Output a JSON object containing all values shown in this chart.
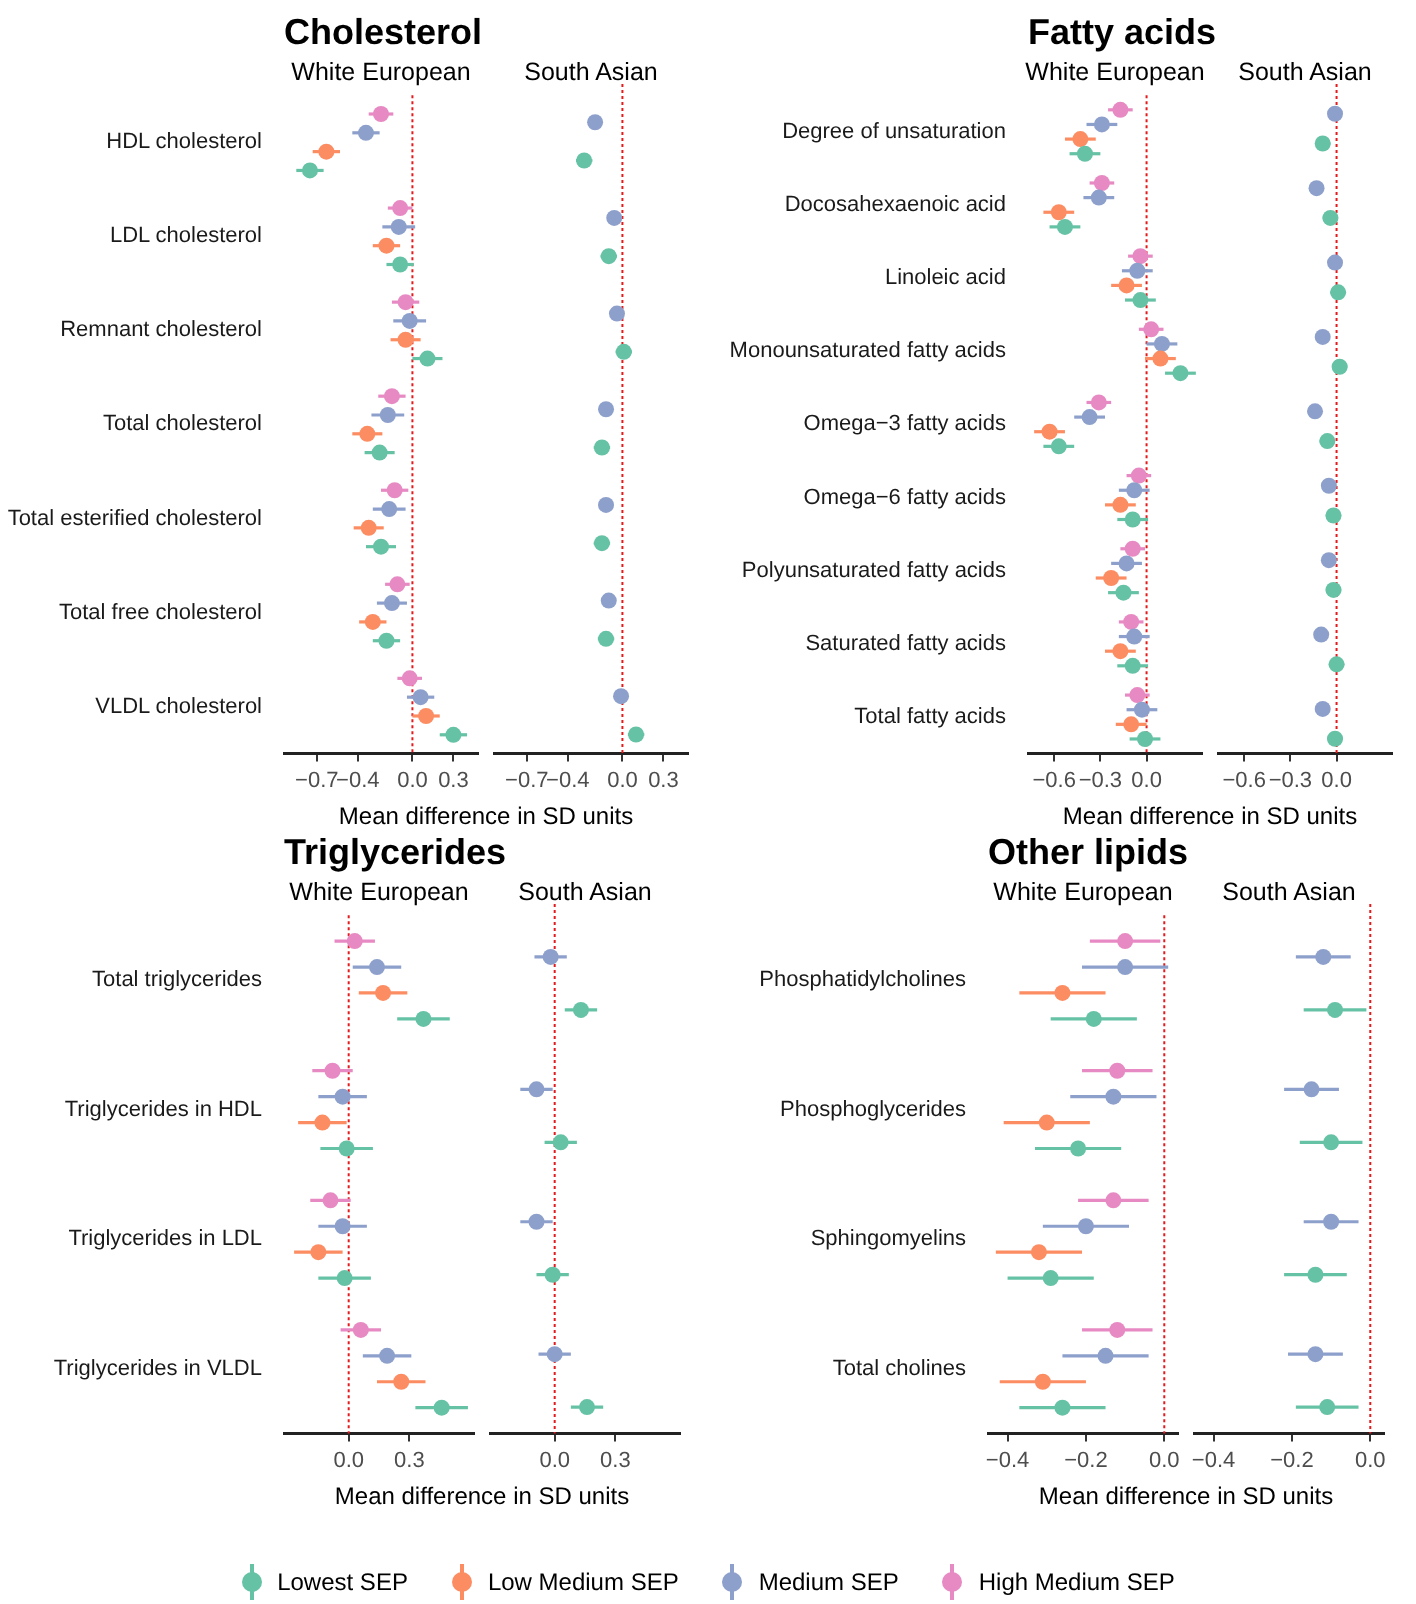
{
  "chart_data": [
    {
      "type": "scatter",
      "orientation": "horizontal",
      "title": "Cholesterol",
      "subtitle": "White European",
      "xlabel": "Mean difference in SD units",
      "marker": "circle",
      "legend": "bottom",
      "categories": [
        "HDL cholesterol",
        "LDL cholesterol",
        "Remnant cholesterol",
        "Total cholesterol",
        "Total esterified cholesterol",
        "Total free cholesterol",
        "VLDL cholesterol"
      ],
      "xlim": [
        -0.94,
        0.48
      ],
      "xticks": [
        {
          "value": -0.7,
          "label": "−0.7"
        },
        {
          "value": -0.4,
          "label": "−0.4"
        },
        {
          "value": 0,
          "label": "0.0"
        },
        {
          "value": 0.3,
          "label": "0.3"
        }
      ],
      "ref_lines": [
        {
          "axis": "x",
          "value": 0,
          "color": "#e41a1c",
          "line_style": "dotted"
        }
      ],
      "series": [
        {
          "name": "Lowest SEP",
          "color": "#66c2a5",
          "values": [
            -0.75,
            -0.09,
            0.11,
            -0.24,
            -0.23,
            -0.19,
            0.3
          ],
          "errors": [
            0.1,
            0.1,
            0.11,
            0.11,
            0.11,
            0.1,
            0.1
          ]
        },
        {
          "name": "Low Medium SEP",
          "color": "#fc8d62",
          "values": [
            -0.63,
            -0.19,
            -0.05,
            -0.33,
            -0.32,
            -0.29,
            0.1
          ],
          "errors": [
            0.1,
            0.1,
            0.11,
            0.11,
            0.11,
            0.1,
            0.1
          ]
        },
        {
          "name": "Medium SEP",
          "color": "#8da0cb",
          "values": [
            -0.34,
            -0.1,
            -0.02,
            -0.18,
            -0.17,
            -0.15,
            0.06
          ],
          "errors": [
            0.1,
            0.12,
            0.12,
            0.12,
            0.12,
            0.11,
            0.1
          ]
        },
        {
          "name": "High Medium SEP",
          "color": "#e78ac3",
          "values": [
            -0.23,
            -0.09,
            -0.05,
            -0.15,
            -0.13,
            -0.11,
            -0.02
          ],
          "errors": [
            0.09,
            0.09,
            0.1,
            0.1,
            0.1,
            0.09,
            0.09
          ]
        }
      ]
    },
    {
      "type": "scatter",
      "orientation": "horizontal",
      "subtitle": "South Asian",
      "marker": "circle",
      "tick_labels": "x",
      "categories": [
        null,
        null,
        null,
        null,
        null,
        null,
        null
      ],
      "xlim": [
        -0.94,
        0.48
      ],
      "xticks": [
        {
          "value": -0.7,
          "label": "−0.7"
        },
        {
          "value": -0.4,
          "label": "−0.4"
        },
        {
          "value": 0,
          "label": "0.0"
        },
        {
          "value": 0.3,
          "label": "0.3"
        }
      ],
      "ref_lines": [
        {
          "axis": "x",
          "value": 0,
          "color": "#e41a1c",
          "line_style": "dotted"
        }
      ],
      "series": [
        {
          "color": "#66c2a5",
          "values": [
            -0.28,
            -0.1,
            0.01,
            -0.15,
            -0.15,
            -0.12,
            0.1
          ],
          "errors": [
            0.06,
            0.06,
            0.06,
            0.06,
            0.06,
            0.06,
            0.06
          ]
        },
        {
          "color": "#8da0cb",
          "values": [
            -0.2,
            -0.06,
            -0.04,
            -0.12,
            -0.12,
            -0.1,
            -0.01
          ],
          "errors": [
            0.05,
            0.05,
            0.05,
            0.05,
            0.05,
            0.05,
            0.05
          ]
        }
      ]
    },
    {
      "type": "scatter",
      "orientation": "horizontal",
      "title": "Fatty acids",
      "subtitle": "White European",
      "xlabel": "Mean difference in SD units",
      "marker": "circle",
      "categories": [
        "Degree of unsaturation",
        "Docosahexaenoic acid",
        "Linoleic acid",
        "Monounsaturated fatty acids",
        "Omega−3 fatty acids",
        "Omega−6 fatty acids",
        "Polyunsaturated fatty acids",
        "Saturated fatty acids",
        "Total fatty acids"
      ],
      "xlim": [
        -0.77,
        0.36
      ],
      "xticks": [
        {
          "value": -0.6,
          "label": "−0.6"
        },
        {
          "value": -0.3,
          "label": "−0.3"
        },
        {
          "value": 0,
          "label": "0.0"
        }
      ],
      "ref_lines": [
        {
          "axis": "x",
          "value": 0,
          "color": "#e41a1c",
          "line_style": "dotted"
        }
      ],
      "series": [
        {
          "color": "#66c2a5",
          "values": [
            -0.4,
            -0.53,
            -0.04,
            0.22,
            -0.57,
            -0.09,
            -0.15,
            -0.09,
            -0.01
          ],
          "errors": [
            0.1,
            0.1,
            0.1,
            0.1,
            0.1,
            0.1,
            0.1,
            0.1,
            0.1
          ]
        },
        {
          "color": "#fc8d62",
          "values": [
            -0.43,
            -0.57,
            -0.13,
            0.09,
            -0.63,
            -0.17,
            -0.23,
            -0.17,
            -0.1
          ],
          "errors": [
            0.1,
            0.1,
            0.1,
            0.1,
            0.1,
            0.1,
            0.1,
            0.1,
            0.1
          ]
        },
        {
          "color": "#8da0cb",
          "values": [
            -0.29,
            -0.31,
            -0.06,
            0.1,
            -0.37,
            -0.08,
            -0.13,
            -0.08,
            -0.03
          ],
          "errors": [
            0.1,
            0.1,
            0.1,
            0.1,
            0.1,
            0.1,
            0.1,
            0.1,
            0.1
          ]
        },
        {
          "color": "#e78ac3",
          "values": [
            -0.17,
            -0.29,
            -0.04,
            0.03,
            -0.31,
            -0.05,
            -0.09,
            -0.1,
            -0.06
          ],
          "errors": [
            0.08,
            0.08,
            0.08,
            0.08,
            0.08,
            0.08,
            0.08,
            0.08,
            0.08
          ]
        }
      ]
    },
    {
      "type": "scatter",
      "orientation": "horizontal",
      "subtitle": "South Asian",
      "marker": "circle",
      "tick_labels": "x",
      "categories": [
        null,
        null,
        null,
        null,
        null,
        null,
        null,
        null,
        null
      ],
      "xlim": [
        -0.77,
        0.36
      ],
      "xticks": [
        {
          "value": -0.6,
          "label": "−0.6"
        },
        {
          "value": -0.3,
          "label": "−0.3"
        },
        {
          "value": 0,
          "label": "0.0"
        }
      ],
      "ref_lines": [
        {
          "axis": "x",
          "value": 0,
          "color": "#e41a1c",
          "line_style": "dotted"
        }
      ],
      "series": [
        {
          "color": "#66c2a5",
          "values": [
            -0.09,
            -0.04,
            0.01,
            0.02,
            -0.06,
            -0.02,
            -0.02,
            0,
            -0.01
          ],
          "errors": [
            0.05,
            0.05,
            0.05,
            0.05,
            0.05,
            0.05,
            0.05,
            0.05,
            0.05
          ]
        },
        {
          "color": "#8da0cb",
          "values": [
            -0.01,
            -0.13,
            -0.01,
            -0.09,
            -0.14,
            -0.05,
            -0.05,
            -0.1,
            -0.09
          ],
          "errors": [
            0.04,
            0.04,
            0.04,
            0.04,
            0.04,
            0.04,
            0.04,
            0.04,
            0.04
          ]
        }
      ]
    },
    {
      "type": "scatter",
      "orientation": "horizontal",
      "title": "Triglycerides",
      "subtitle": "White European",
      "xlabel": "Mean difference in SD units",
      "marker": "circle",
      "categories": [
        "Total triglycerides",
        "Triglycerides in HDL",
        "Triglycerides in LDL",
        "Triglycerides in VLDL"
      ],
      "xlim": [
        -0.32,
        0.62
      ],
      "xticks": [
        {
          "value": 0,
          "label": "0.0"
        },
        {
          "value": 0.3,
          "label": "0.3"
        }
      ],
      "ref_lines": [
        {
          "axis": "x",
          "value": 0,
          "color": "#e41a1c",
          "line_style": "dotted"
        }
      ],
      "series": [
        {
          "color": "#66c2a5",
          "values": [
            0.37,
            -0.01,
            -0.02,
            0.46
          ],
          "errors": [
            0.13,
            0.13,
            0.13,
            0.13
          ]
        },
        {
          "color": "#fc8d62",
          "values": [
            0.17,
            -0.13,
            -0.15,
            0.26
          ],
          "errors": [
            0.12,
            0.12,
            0.12,
            0.12
          ]
        },
        {
          "color": "#8da0cb",
          "values": [
            0.14,
            -0.03,
            -0.03,
            0.19
          ],
          "errors": [
            0.12,
            0.12,
            0.12,
            0.12
          ]
        },
        {
          "color": "#e78ac3",
          "values": [
            0.03,
            -0.08,
            -0.09,
            0.06
          ],
          "errors": [
            0.1,
            0.1,
            0.1,
            0.1
          ]
        }
      ]
    },
    {
      "type": "scatter",
      "orientation": "horizontal",
      "subtitle": "South Asian",
      "marker": "circle",
      "tick_labels": "x",
      "categories": [
        null,
        null,
        null,
        null
      ],
      "xlim": [
        -0.32,
        0.62
      ],
      "xticks": [
        {
          "value": 0,
          "label": "0.0"
        },
        {
          "value": 0.3,
          "label": "0.3"
        }
      ],
      "ref_lines": [
        {
          "axis": "x",
          "value": 0,
          "color": "#e41a1c",
          "line_style": "dotted"
        }
      ],
      "series": [
        {
          "color": "#66c2a5",
          "values": [
            0.13,
            0.03,
            -0.01,
            0.16
          ],
          "errors": [
            0.08,
            0.08,
            0.08,
            0.08
          ]
        },
        {
          "color": "#8da0cb",
          "values": [
            -0.02,
            -0.09,
            -0.09,
            0
          ],
          "errors": [
            0.08,
            0.08,
            0.08,
            0.08
          ]
        }
      ]
    },
    {
      "type": "scatter",
      "orientation": "horizontal",
      "title": "Other lipids",
      "subtitle": "White European",
      "xlabel": "Mean difference in SD units",
      "marker": "circle",
      "categories": [
        "Phosphatidylcholines",
        "Phosphoglycerides",
        "Sphingomyelins",
        "Total cholines"
      ],
      "xlim": [
        -0.45,
        0.035
      ],
      "xticks": [
        {
          "value": -0.4,
          "label": "−0.4"
        },
        {
          "value": -0.2,
          "label": "−0.2"
        },
        {
          "value": 0,
          "label": "0.0"
        }
      ],
      "ref_lines": [
        {
          "axis": "x",
          "value": 0,
          "color": "#e41a1c",
          "line_style": "dotted"
        }
      ],
      "series": [
        {
          "color": "#66c2a5",
          "values": [
            -0.18,
            -0.22,
            -0.29,
            -0.26
          ],
          "errors": [
            0.11,
            0.11,
            0.11,
            0.11
          ]
        },
        {
          "color": "#fc8d62",
          "values": [
            -0.26,
            -0.3,
            -0.32,
            -0.31
          ],
          "errors": [
            0.11,
            0.11,
            0.11,
            0.11
          ]
        },
        {
          "color": "#8da0cb",
          "values": [
            -0.1,
            -0.13,
            -0.2,
            -0.15
          ],
          "errors": [
            0.11,
            0.11,
            0.11,
            0.11
          ]
        },
        {
          "color": "#e78ac3",
          "values": [
            -0.1,
            -0.12,
            -0.13,
            -0.12
          ],
          "errors": [
            0.09,
            0.09,
            0.09,
            0.09
          ]
        }
      ]
    },
    {
      "type": "scatter",
      "orientation": "horizontal",
      "subtitle": "South Asian",
      "marker": "circle",
      "tick_labels": "x",
      "categories": [
        null,
        null,
        null,
        null
      ],
      "xlim": [
        -0.45,
        0.035
      ],
      "xticks": [
        {
          "value": -0.4,
          "label": "−0.4"
        },
        {
          "value": -0.2,
          "label": "−0.2"
        },
        {
          "value": 0,
          "label": "0.0"
        }
      ],
      "ref_lines": [
        {
          "axis": "x",
          "value": 0,
          "color": "#e41a1c",
          "line_style": "dotted"
        }
      ],
      "series": [
        {
          "color": "#66c2a5",
          "values": [
            -0.09,
            -0.1,
            -0.14,
            -0.11
          ],
          "errors": [
            0.08,
            0.08,
            0.08,
            0.08
          ]
        },
        {
          "color": "#8da0cb",
          "values": [
            -0.12,
            -0.15,
            -0.1,
            -0.14
          ],
          "errors": [
            0.07,
            0.07,
            0.07,
            0.07
          ]
        }
      ]
    }
  ]
}
